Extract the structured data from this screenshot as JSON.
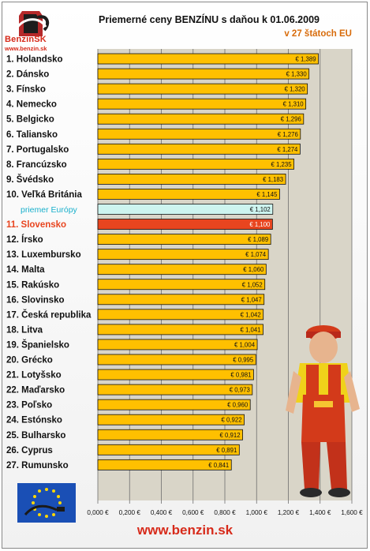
{
  "logo": {
    "text": "BenzinSK",
    "url": "www.benzin.sk"
  },
  "header": {
    "title": "Priemerné ceny BENZÍNU s daňou k 01.06.2009",
    "subtitle": "v 27 štátoch EU"
  },
  "footer": {
    "url": "www.benzin.sk"
  },
  "colors": {
    "bar": "#ffc000",
    "bar_europe": "#cdf4ef",
    "bar_slovakia": "#e8451f",
    "plot_bg": "#d9d5c8",
    "label_orange": "#d86b0a",
    "label_europe": "#19b0cc"
  },
  "chart_data": {
    "type": "bar",
    "orientation": "horizontal",
    "title": "Priemerné ceny BENZÍNU s daňou k 01.06.2009",
    "subtitle": "v 27 štátoch EU",
    "xlim": [
      0,
      1.6
    ],
    "xticks": [
      "0,000 €",
      "0,200 €",
      "0,400 €",
      "0,600 €",
      "0,800 €",
      "1,000 €",
      "1,200 €",
      "1,400 €",
      "1,600 €"
    ],
    "grid": true,
    "categories": [
      "1. Holandsko",
      "2. Dánsko",
      "3. Fínsko",
      "4. Nemecko",
      "5. Belgicko",
      "6. Taliansko",
      "7. Portugalsko",
      "8. Francúzsko",
      "9. Švédsko",
      "10. Veľká Británia",
      "priemer Európy",
      "11. Slovensko",
      "12. Írsko",
      "13. Luxembursko",
      "14. Malta",
      "15. Rakúsko",
      "16. Slovinsko",
      "17. Česká republika",
      "18. Litva",
      "19. Španielsko",
      "20. Grécko",
      "21. Lotyšsko",
      "22. Maďarsko",
      "23. Poľsko",
      "24. Estónsko",
      "25. Bulharsko",
      "26. Cyprus",
      "27. Rumunsko"
    ],
    "values": [
      1.389,
      1.33,
      1.32,
      1.31,
      1.296,
      1.276,
      1.274,
      1.235,
      1.183,
      1.145,
      1.102,
      1.1,
      1.089,
      1.074,
      1.06,
      1.052,
      1.047,
      1.042,
      1.041,
      1.004,
      0.995,
      0.981,
      0.973,
      0.96,
      0.922,
      0.912,
      0.891,
      0.841
    ],
    "value_labels": [
      "€ 1,389",
      "€ 1,330",
      "€ 1,320",
      "€ 1,310",
      "€ 1,296",
      "€ 1,276",
      "€ 1,274",
      "€ 1,235",
      "€ 1,183",
      "€ 1,145",
      "€ 1,102",
      "€ 1,100",
      "€ 1,089",
      "€ 1,074",
      "€ 1,060",
      "€ 1,052",
      "€ 1,047",
      "€ 1,042",
      "€ 1,041",
      "€ 1,004",
      "€ 0,995",
      "€ 0,981",
      "€ 0,973",
      "€ 0,960",
      "€ 0,922",
      "€ 0,912",
      "€ 0,891",
      "€ 0,841"
    ],
    "highlight_europe_index": 10,
    "highlight_slovakia_index": 11
  }
}
